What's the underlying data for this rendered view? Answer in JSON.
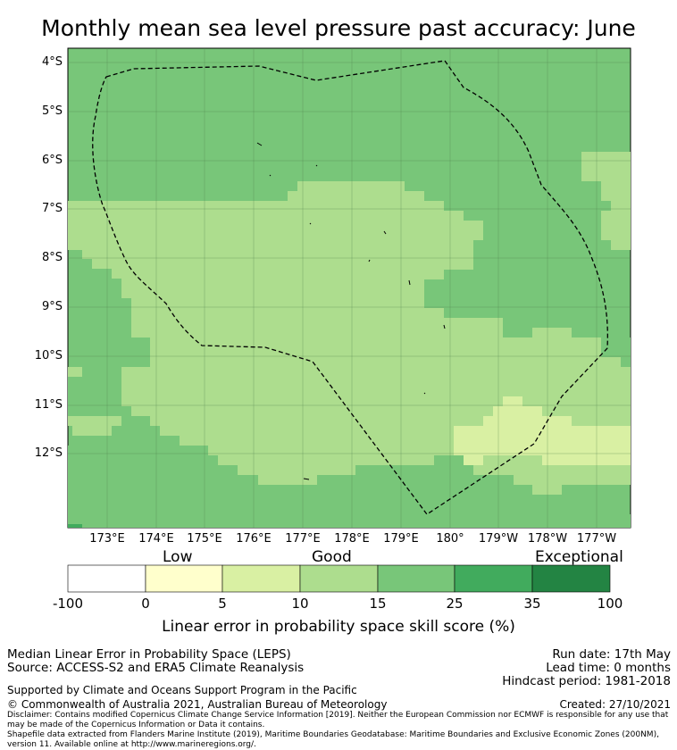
{
  "title": "Monthly mean sea level pressure past accuracy: June",
  "map": {
    "lat_ticks": [
      "4°S",
      "5°S",
      "6°S",
      "7°S",
      "8°S",
      "9°S",
      "10°S",
      "11°S",
      "12°S"
    ],
    "lon_ticks": [
      "173°E",
      "174°E",
      "175°E",
      "176°E",
      "177°E",
      "178°E",
      "179°E",
      "180°",
      "179°W",
      "178°W",
      "177°W"
    ],
    "colors": {
      "cat_0_5": "#ffffcc",
      "cat_5_10": "#d9f0a3",
      "cat_10_15": "#addd8e",
      "cat_15_25": "#78c679",
      "cat_25_35": "#41ab5d",
      "cat_35_100": "#238443",
      "boundary": "#000000"
    },
    "dominant_skill_north": "15-25",
    "dominant_skill_central": "10-15"
  },
  "colorbar": {
    "categories": [
      "Low",
      "Good",
      "Exceptional"
    ],
    "ticks": [
      "-100",
      "0",
      "5",
      "10",
      "15",
      "25",
      "35",
      "100"
    ],
    "colors": [
      "#ffffff",
      "#ffffcc",
      "#d9f0a3",
      "#addd8e",
      "#78c679",
      "#41ab5d",
      "#238443"
    ],
    "label": "Linear error in probability space skill score (%)"
  },
  "footer": {
    "method": "Median Linear Error in Probability Space (LEPS)",
    "source": "Source: ACCESS-S2 and ERA5 Climate Reanalysis",
    "run_date": "Run date: 17th May",
    "lead_time": "Lead time: 0 months",
    "hindcast": "Hindcast period: 1981-2018",
    "support": "Supported by Climate and Oceans Support Program in the Pacific",
    "copyright": "© Commonwealth of Australia 2021, Australian Bureau of Meteorology",
    "created": "Created: 27/10/2021",
    "disclaimer": "Disclaimer: Contains modified Copernicus Climate Change Service Information [2019]. Neither the European Commission nor ECMWF is responsible for any use that may be made of the Copernicus Information or Data it contains.",
    "shapefile": "Shapefile data extracted from Flanders Marine Institute (2019), Maritime Boundaries Geodatabase: Maritime Boundaries and Exclusive Economic Zones (200NM), version 11. Available online at http://www.marineregions.org/."
  }
}
